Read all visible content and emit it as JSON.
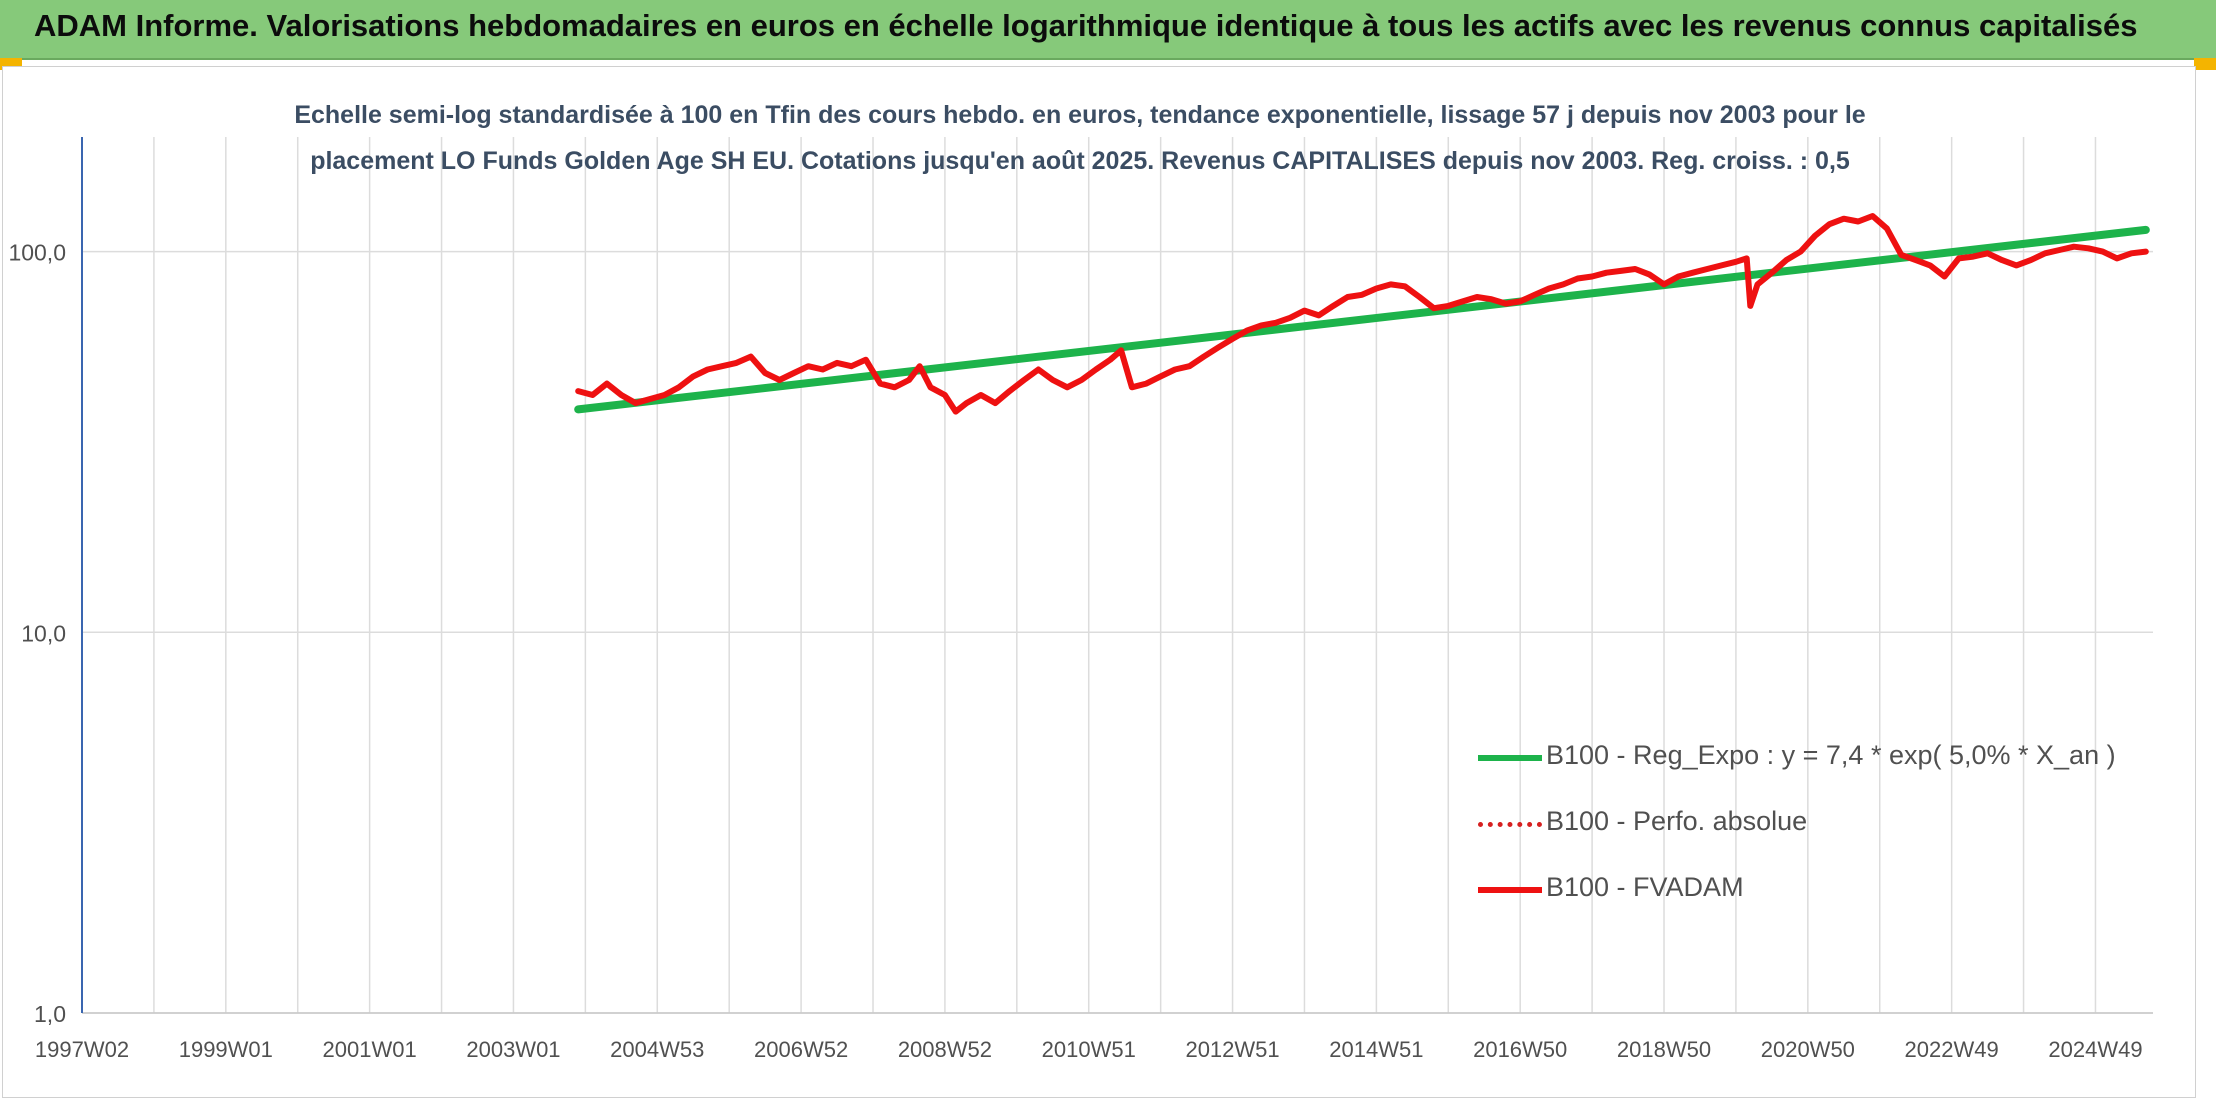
{
  "header": {
    "title": "ADAM Informe. Valorisations hebdomadaires en euros en échelle logarithmique identique à tous les actifs avec les revenus connus capitalisés"
  },
  "colors": {
    "banner": "#86c97a",
    "trend": "#1db34b",
    "fvadam": "#ee1111",
    "perfo": "#d62020",
    "grid": "#dcdcdc",
    "axis": "#3a66b0",
    "accent": "#f4b400"
  },
  "chart_data": {
    "type": "line",
    "title_line1": "Echelle semi-log standardisée à 100 en Tfin des cours hebdo. en euros, tendance exponentielle, lissage 57 j depuis nov 2003 pour le",
    "title_line2": "placement LO Funds Golden Age SH EU. Cotations jusqu'en août 2025. Revenus CAPITALISES depuis nov 2003. Reg. croiss. : 0,5",
    "y_scale": "log",
    "ylim": [
      1,
      200
    ],
    "y_ticks": [
      {
        "v": 1,
        "label": "1,0"
      },
      {
        "v": 10,
        "label": "10,0"
      },
      {
        "v": 100,
        "label": "100,0"
      }
    ],
    "xlim": [
      1997.0,
      2025.8
    ],
    "x_tick_labels": [
      {
        "x": 1997.0,
        "label": "1997W02"
      },
      {
        "x": 1999.0,
        "label": "1999W01"
      },
      {
        "x": 2001.0,
        "label": "2001W01"
      },
      {
        "x": 2003.0,
        "label": "2003W01"
      },
      {
        "x": 2005.0,
        "label": "2004W53"
      },
      {
        "x": 2007.0,
        "label": "2006W52"
      },
      {
        "x": 2009.0,
        "label": "2008W52"
      },
      {
        "x": 2011.0,
        "label": "2010W51"
      },
      {
        "x": 2013.0,
        "label": "2012W51"
      },
      {
        "x": 2015.0,
        "label": "2014W51"
      },
      {
        "x": 2017.0,
        "label": "2016W50"
      },
      {
        "x": 2019.0,
        "label": "2018W50"
      },
      {
        "x": 2021.0,
        "label": "2020W50"
      },
      {
        "x": 2023.0,
        "label": "2022W49"
      },
      {
        "x": 2025.0,
        "label": "2024W49"
      }
    ],
    "legend_position": "bottom-right",
    "series": [
      {
        "name": "B100 - Reg_Expo : y = 7,4 * exp( 5,0% *  X_an )",
        "style": "solid-thick",
        "color": "#1db34b",
        "points": [
          [
            2003.9,
            38.5
          ],
          [
            2025.7,
            114
          ]
        ]
      },
      {
        "name": "B100 - Perfo. absolue",
        "style": "dotted",
        "color": "#d62020",
        "points": []
      },
      {
        "name": "B100 - FVADAM",
        "style": "solid",
        "color": "#ee1111",
        "points": [
          [
            2003.9,
            43
          ],
          [
            2004.1,
            42
          ],
          [
            2004.3,
            45
          ],
          [
            2004.5,
            42
          ],
          [
            2004.7,
            40
          ],
          [
            2004.9,
            41
          ],
          [
            2005.1,
            42
          ],
          [
            2005.3,
            44
          ],
          [
            2005.5,
            47
          ],
          [
            2005.7,
            49
          ],
          [
            2005.9,
            50
          ],
          [
            2006.1,
            51
          ],
          [
            2006.3,
            53
          ],
          [
            2006.5,
            48
          ],
          [
            2006.7,
            46
          ],
          [
            2006.9,
            48
          ],
          [
            2007.1,
            50
          ],
          [
            2007.3,
            49
          ],
          [
            2007.5,
            51
          ],
          [
            2007.7,
            50
          ],
          [
            2007.9,
            52
          ],
          [
            2008.1,
            45
          ],
          [
            2008.3,
            44
          ],
          [
            2008.5,
            46
          ],
          [
            2008.65,
            50
          ],
          [
            2008.8,
            44
          ],
          [
            2009.0,
            42
          ],
          [
            2009.15,
            38
          ],
          [
            2009.3,
            40
          ],
          [
            2009.5,
            42
          ],
          [
            2009.7,
            40
          ],
          [
            2009.9,
            43
          ],
          [
            2010.1,
            46
          ],
          [
            2010.3,
            49
          ],
          [
            2010.5,
            46
          ],
          [
            2010.7,
            44
          ],
          [
            2010.9,
            46
          ],
          [
            2011.1,
            49
          ],
          [
            2011.3,
            52
          ],
          [
            2011.45,
            55
          ],
          [
            2011.6,
            44
          ],
          [
            2011.8,
            45
          ],
          [
            2012.0,
            47
          ],
          [
            2012.2,
            49
          ],
          [
            2012.4,
            50
          ],
          [
            2012.6,
            53
          ],
          [
            2012.8,
            56
          ],
          [
            2013.0,
            59
          ],
          [
            2013.2,
            62
          ],
          [
            2013.4,
            64
          ],
          [
            2013.6,
            65
          ],
          [
            2013.8,
            67
          ],
          [
            2014.0,
            70
          ],
          [
            2014.2,
            68
          ],
          [
            2014.4,
            72
          ],
          [
            2014.6,
            76
          ],
          [
            2014.8,
            77
          ],
          [
            2015.0,
            80
          ],
          [
            2015.2,
            82
          ],
          [
            2015.4,
            81
          ],
          [
            2015.6,
            76
          ],
          [
            2015.8,
            71
          ],
          [
            2016.0,
            72
          ],
          [
            2016.2,
            74
          ],
          [
            2016.4,
            76
          ],
          [
            2016.6,
            75
          ],
          [
            2016.8,
            73
          ],
          [
            2017.0,
            74
          ],
          [
            2017.2,
            77
          ],
          [
            2017.4,
            80
          ],
          [
            2017.6,
            82
          ],
          [
            2017.8,
            85
          ],
          [
            2018.0,
            86
          ],
          [
            2018.2,
            88
          ],
          [
            2018.4,
            89
          ],
          [
            2018.6,
            90
          ],
          [
            2018.8,
            87
          ],
          [
            2019.0,
            82
          ],
          [
            2019.2,
            86
          ],
          [
            2019.4,
            88
          ],
          [
            2019.6,
            90
          ],
          [
            2019.8,
            92
          ],
          [
            2020.0,
            94
          ],
          [
            2020.15,
            96
          ],
          [
            2020.2,
            72
          ],
          [
            2020.3,
            82
          ],
          [
            2020.5,
            88
          ],
          [
            2020.7,
            95
          ],
          [
            2020.9,
            100
          ],
          [
            2021.1,
            110
          ],
          [
            2021.3,
            118
          ],
          [
            2021.5,
            122
          ],
          [
            2021.7,
            120
          ],
          [
            2021.9,
            124
          ],
          [
            2022.1,
            115
          ],
          [
            2022.3,
            98
          ],
          [
            2022.5,
            95
          ],
          [
            2022.7,
            92
          ],
          [
            2022.9,
            86
          ],
          [
            2023.1,
            96
          ],
          [
            2023.3,
            97
          ],
          [
            2023.5,
            99
          ],
          [
            2023.7,
            95
          ],
          [
            2023.9,
            92
          ],
          [
            2024.1,
            95
          ],
          [
            2024.3,
            99
          ],
          [
            2024.5,
            101
          ],
          [
            2024.7,
            103
          ],
          [
            2024.9,
            102
          ],
          [
            2025.1,
            100
          ],
          [
            2025.3,
            96
          ],
          [
            2025.5,
            99
          ],
          [
            2025.7,
            100
          ]
        ]
      }
    ]
  }
}
